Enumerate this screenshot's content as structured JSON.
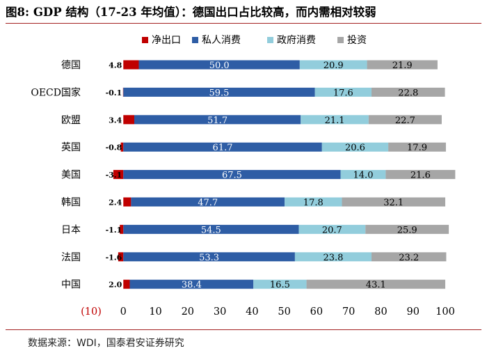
{
  "figure_title": "图8: GDP 结构（17-23 年均值）：德国出口占比较高，而内需相对较弱",
  "source_note": "数据来源：WDI，国泰君安证券研究",
  "colors": {
    "net_exports": "#c00000",
    "private_consumption": "#2e5da5",
    "government_consumption": "#92cddc",
    "investment": "#a6a6a6",
    "title_rule": "#a32020"
  },
  "chart_data": {
    "type": "bar",
    "orientation": "horizontal",
    "stacked": true,
    "categories": [
      "德国",
      "OECD国家",
      "欧盟",
      "英国",
      "美国",
      "韩国",
      "日本",
      "法国",
      "中国"
    ],
    "series": [
      {
        "name": "净出口",
        "values": [
          4.8,
          -0.1,
          3.4,
          -0.8,
          -3.1,
          2.4,
          -1.1,
          -1.6,
          2.0
        ]
      },
      {
        "name": "私人消费",
        "values": [
          50.0,
          59.5,
          51.7,
          61.7,
          67.5,
          47.7,
          54.5,
          53.3,
          38.4
        ]
      },
      {
        "name": "政府消费",
        "values": [
          20.9,
          17.6,
          21.1,
          20.6,
          14.0,
          17.8,
          20.7,
          23.8,
          16.5
        ]
      },
      {
        "name": "投资",
        "values": [
          21.9,
          22.8,
          22.7,
          17.9,
          21.6,
          32.1,
          25.9,
          23.2,
          43.1
        ]
      }
    ],
    "xlim": [
      -10,
      100
    ],
    "xticks": [
      -10,
      0,
      10,
      20,
      30,
      40,
      50,
      60,
      70,
      80,
      90,
      100
    ],
    "xtick_labels": [
      "(10)",
      "0",
      "10",
      "20",
      "30",
      "40",
      "50",
      "60",
      "70",
      "80",
      "90",
      "100"
    ],
    "value_labels": [
      [
        "4.8",
        "50.0",
        "20.9",
        "21.9"
      ],
      [
        "-0.1",
        "59.5",
        "17.6",
        "22.8"
      ],
      [
        "3.4",
        "51.7",
        "21.1",
        "22.7"
      ],
      [
        "-0.8",
        "61.7",
        "20.6",
        "17.9"
      ],
      [
        "-3.1",
        "67.5",
        "14.0",
        "21.6"
      ],
      [
        "2.4",
        "47.7",
        "17.8",
        "32.1"
      ],
      [
        "-1.1",
        "54.5",
        "20.7",
        "25.9"
      ],
      [
        "-1.6",
        "53.3",
        "23.8",
        "23.2"
      ],
      [
        "2.0",
        "38.4",
        "16.5",
        "43.1"
      ]
    ],
    "legend_position": "top",
    "grid": false
  }
}
